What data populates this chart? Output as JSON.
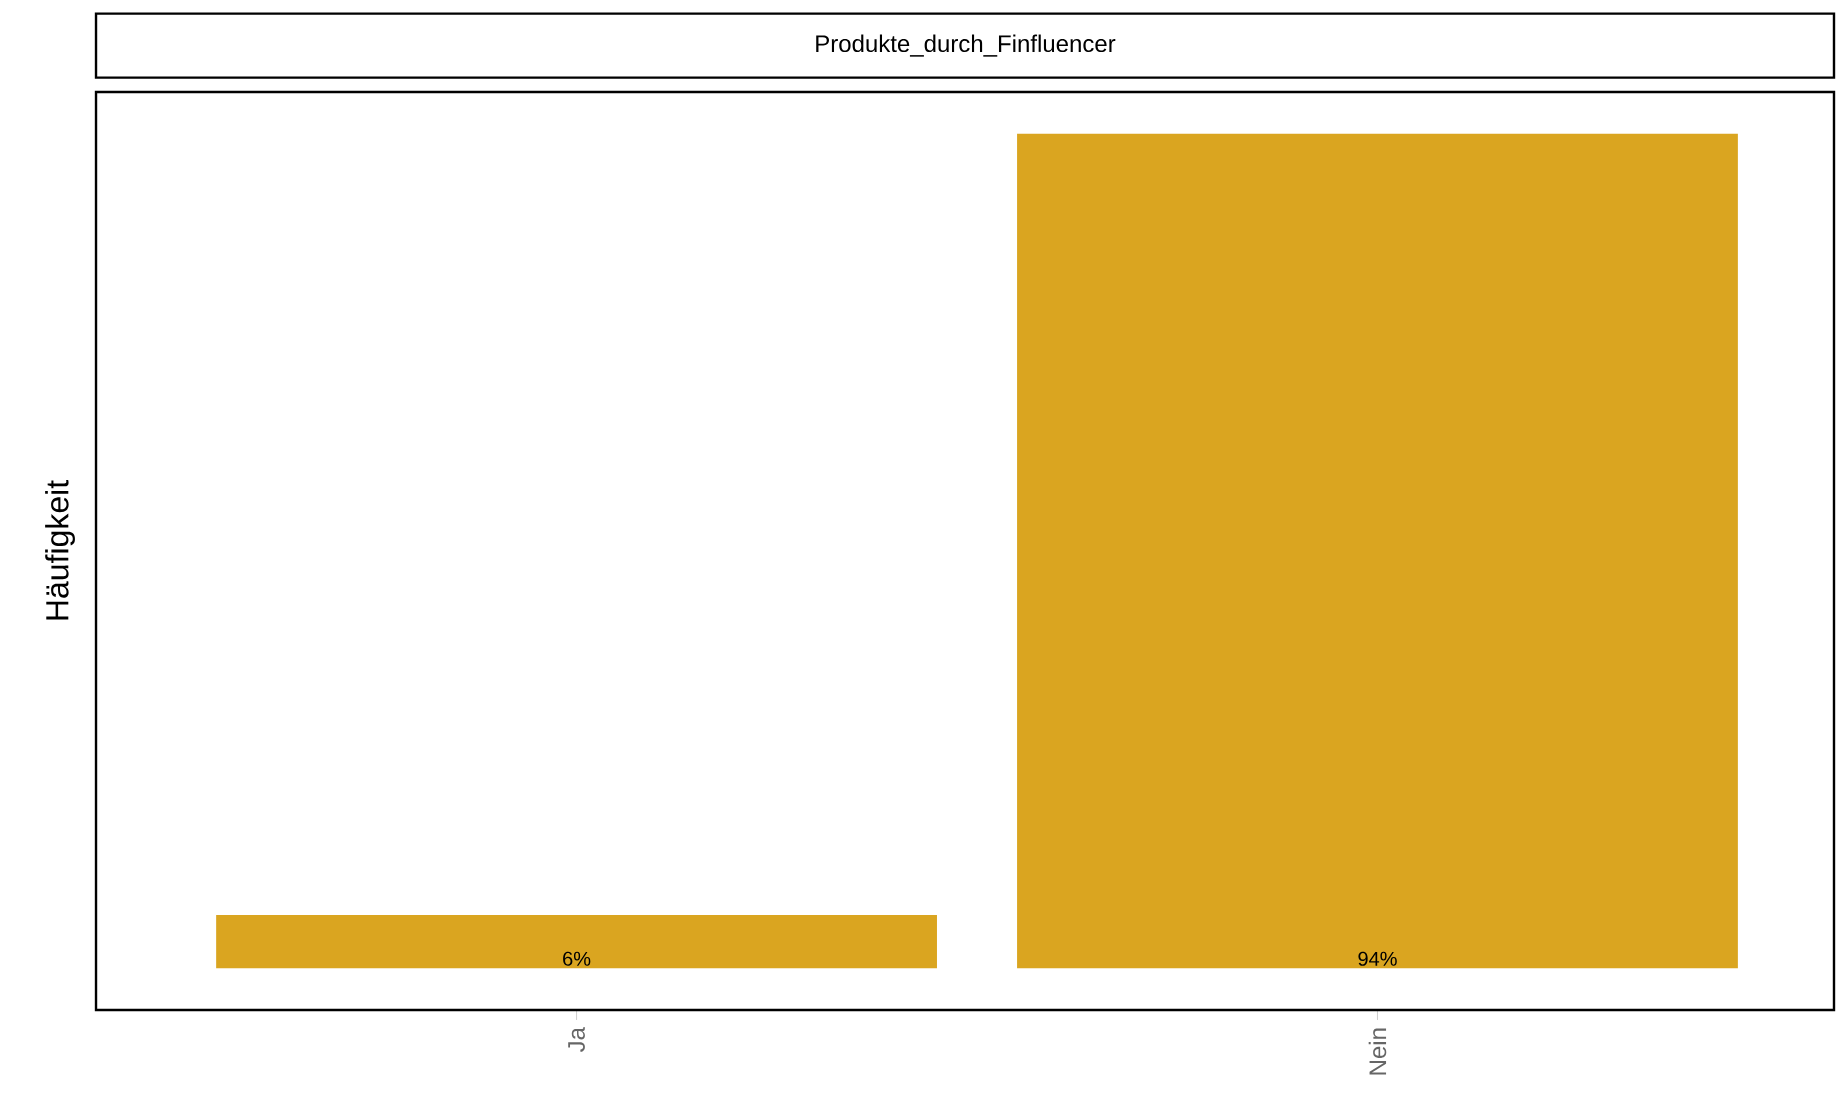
{
  "chart_data": {
    "type": "bar",
    "title": "Produkte_durch_Finfluencer",
    "ylabel": "Häufigkeit",
    "categories": [
      "Ja",
      "Nein"
    ],
    "values": [
      6,
      94
    ],
    "value_labels": [
      "6%",
      "94%"
    ],
    "color": "#daa520",
    "tick_labels": "x"
  }
}
